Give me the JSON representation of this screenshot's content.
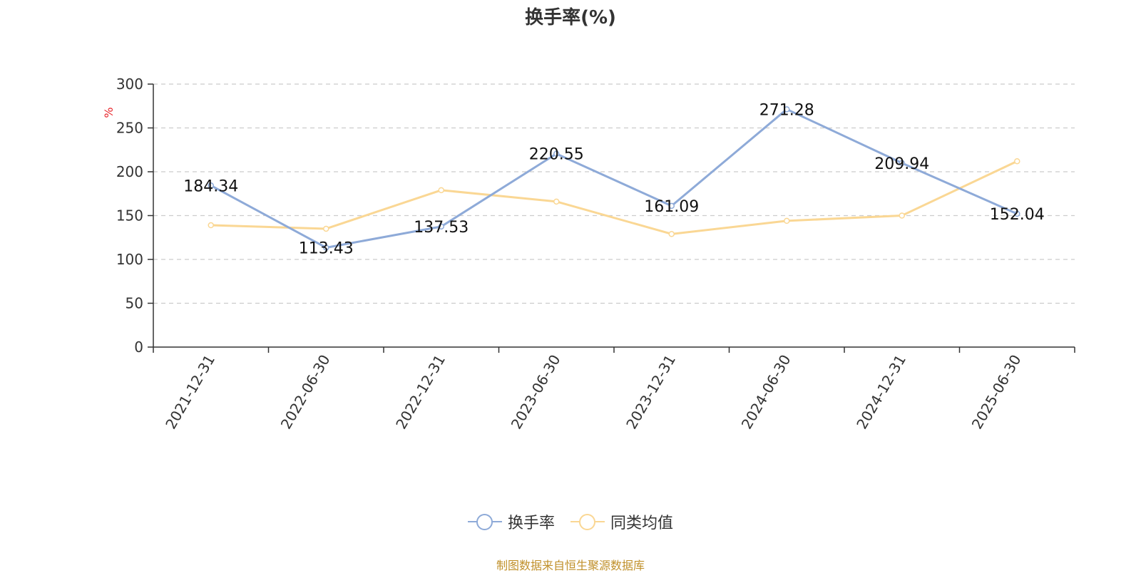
{
  "chart_data": {
    "type": "line",
    "title": "换手率(%)",
    "ylabel": "%",
    "ylim": [
      0,
      300
    ],
    "yticks": [
      0,
      50,
      100,
      150,
      200,
      250,
      300
    ],
    "categories": [
      "2021-12-31",
      "2022-06-30",
      "2022-12-31",
      "2023-06-30",
      "2023-12-31",
      "2024-06-30",
      "2024-12-31",
      "2025-06-30"
    ],
    "series": [
      {
        "name": "换手率",
        "color": "#8eaad8",
        "values": [
          184.34,
          113.43,
          137.53,
          220.55,
          161.09,
          271.28,
          209.94,
          152.04
        ],
        "labels": [
          "184.34",
          "113.43",
          "137.53",
          "220.55",
          "161.09",
          "271.28",
          "209.94",
          "152.04"
        ]
      },
      {
        "name": "同类均值",
        "color": "#fad794",
        "values": [
          139,
          135,
          179,
          166,
          129,
          144,
          150,
          212
        ]
      }
    ],
    "grid": true,
    "legend_position": "bottom"
  },
  "ylabel_color": "#e8262c",
  "source_note": "制图数据来自恒生聚源数据库"
}
